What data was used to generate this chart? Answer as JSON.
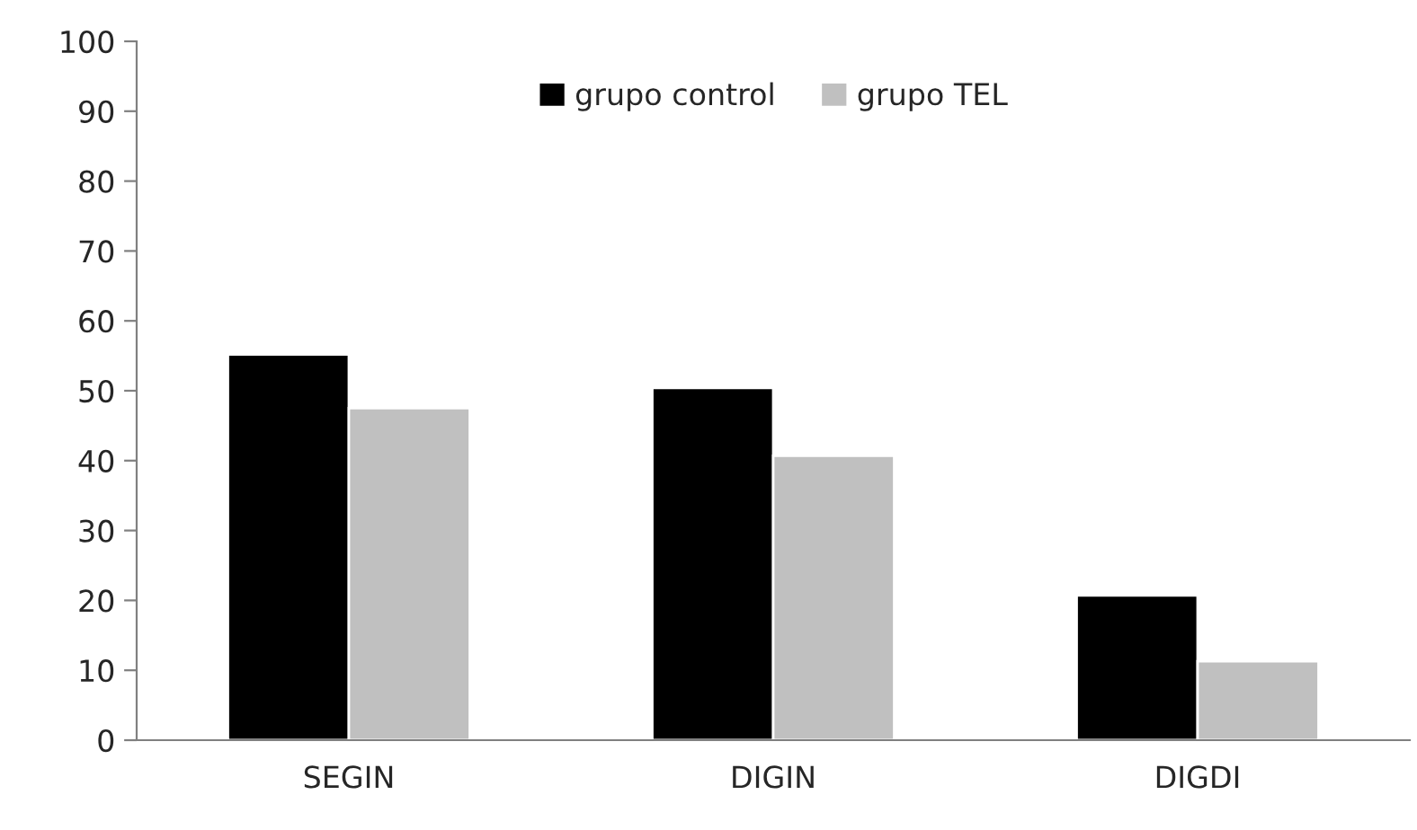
{
  "chart_data": {
    "type": "bar",
    "categories": [
      "SEGIN",
      "DIGIN",
      "DIGDI"
    ],
    "series": [
      {
        "name": "grupo control",
        "color": "#000000",
        "values": [
          55.2,
          50.4,
          20.7
        ]
      },
      {
        "name": "grupo TEL",
        "color": "#c0c0c0",
        "values": [
          47.5,
          40.7,
          11.3
        ]
      }
    ],
    "ylim": [
      0,
      100
    ],
    "yticks": [
      0,
      10,
      20,
      30,
      40,
      50,
      60,
      70,
      80,
      90,
      100
    ],
    "grid": false,
    "legend": "top"
  }
}
